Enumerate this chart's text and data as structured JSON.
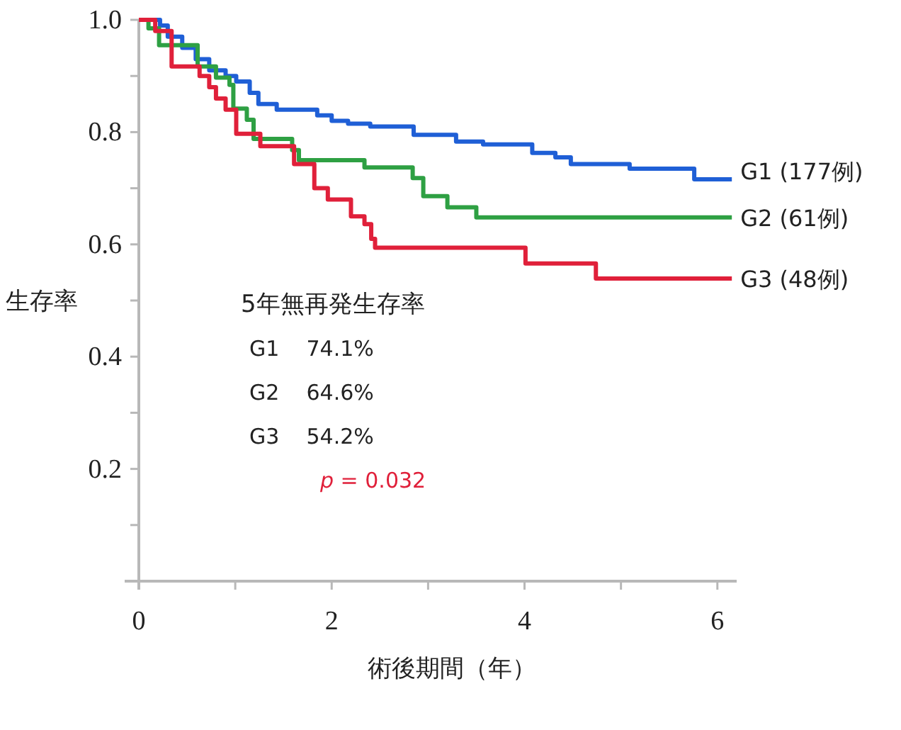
{
  "chart_data": {
    "type": "step",
    "ylabel": "生存率",
    "xlabel": "術後期間（年）",
    "xlim": [
      0,
      6.2
    ],
    "ylim": [
      0,
      1.0
    ],
    "xticks": [
      0,
      {
        "value": 1,
        "label": null
      },
      2,
      {
        "value": 3,
        "label": null
      },
      4,
      {
        "value": 5,
        "label": null
      },
      6
    ],
    "yticks": [
      {
        "value": 0.1,
        "label": null
      },
      0.2,
      {
        "value": 0.3,
        "label": null
      },
      0.4,
      {
        "value": 0.5,
        "label": null
      },
      0.6,
      {
        "value": 0.7,
        "label": null
      },
      0.8,
      {
        "value": 0.9,
        "label": null
      },
      {
        "value": 1,
        "label": "1.0"
      }
    ],
    "grid": false,
    "annotations": [
      "5年無再発生存率",
      "G1    74.1%",
      "G2    64.6%",
      "G3    54.2%",
      "*p* = 0.032"
    ],
    "series": [
      {
        "name": "G1 (177例)",
        "color": "#1f5fd6",
        "x": [
          0,
          0.22,
          0.3,
          0.45,
          0.59,
          0.73,
          0.9,
          1.01,
          1.15,
          1.24,
          1.43,
          1.85,
          2.0,
          2.17,
          2.4,
          2.85,
          3.29,
          3.57,
          4.08,
          4.32,
          4.48,
          5.09,
          5.76,
          6.15
        ],
        "values": [
          1.0,
          0.99,
          0.97,
          0.95,
          0.93,
          0.91,
          0.9,
          0.89,
          0.87,
          0.85,
          0.84,
          0.83,
          0.82,
          0.815,
          0.81,
          0.795,
          0.783,
          0.778,
          0.763,
          0.755,
          0.743,
          0.735,
          0.716,
          0.716
        ]
      },
      {
        "name": "G2 (61例)",
        "color": "#2ea043",
        "x": [
          0,
          0.1,
          0.21,
          0.61,
          0.8,
          0.94,
          0.98,
          1.12,
          1.19,
          1.59,
          1.66,
          2.34,
          2.84,
          2.95,
          3.2,
          3.5,
          6.15
        ],
        "values": [
          1.0,
          0.985,
          0.955,
          0.917,
          0.897,
          0.884,
          0.842,
          0.822,
          0.788,
          0.768,
          0.75,
          0.737,
          0.718,
          0.686,
          0.666,
          0.648,
          0.648
        ]
      },
      {
        "name": "G3 (48例)",
        "color": "#e0203a",
        "x": [
          0,
          0.17,
          0.34,
          0.63,
          0.73,
          0.8,
          0.9,
          1.01,
          1.26,
          1.61,
          1.82,
          1.96,
          2.2,
          2.34,
          2.41,
          2.45,
          4.01,
          4.74,
          6.15
        ],
        "values": [
          1.0,
          0.98,
          0.917,
          0.9,
          0.88,
          0.86,
          0.84,
          0.797,
          0.775,
          0.743,
          0.7,
          0.68,
          0.65,
          0.636,
          0.61,
          0.594,
          0.566,
          0.539,
          0.539
        ]
      }
    ]
  }
}
